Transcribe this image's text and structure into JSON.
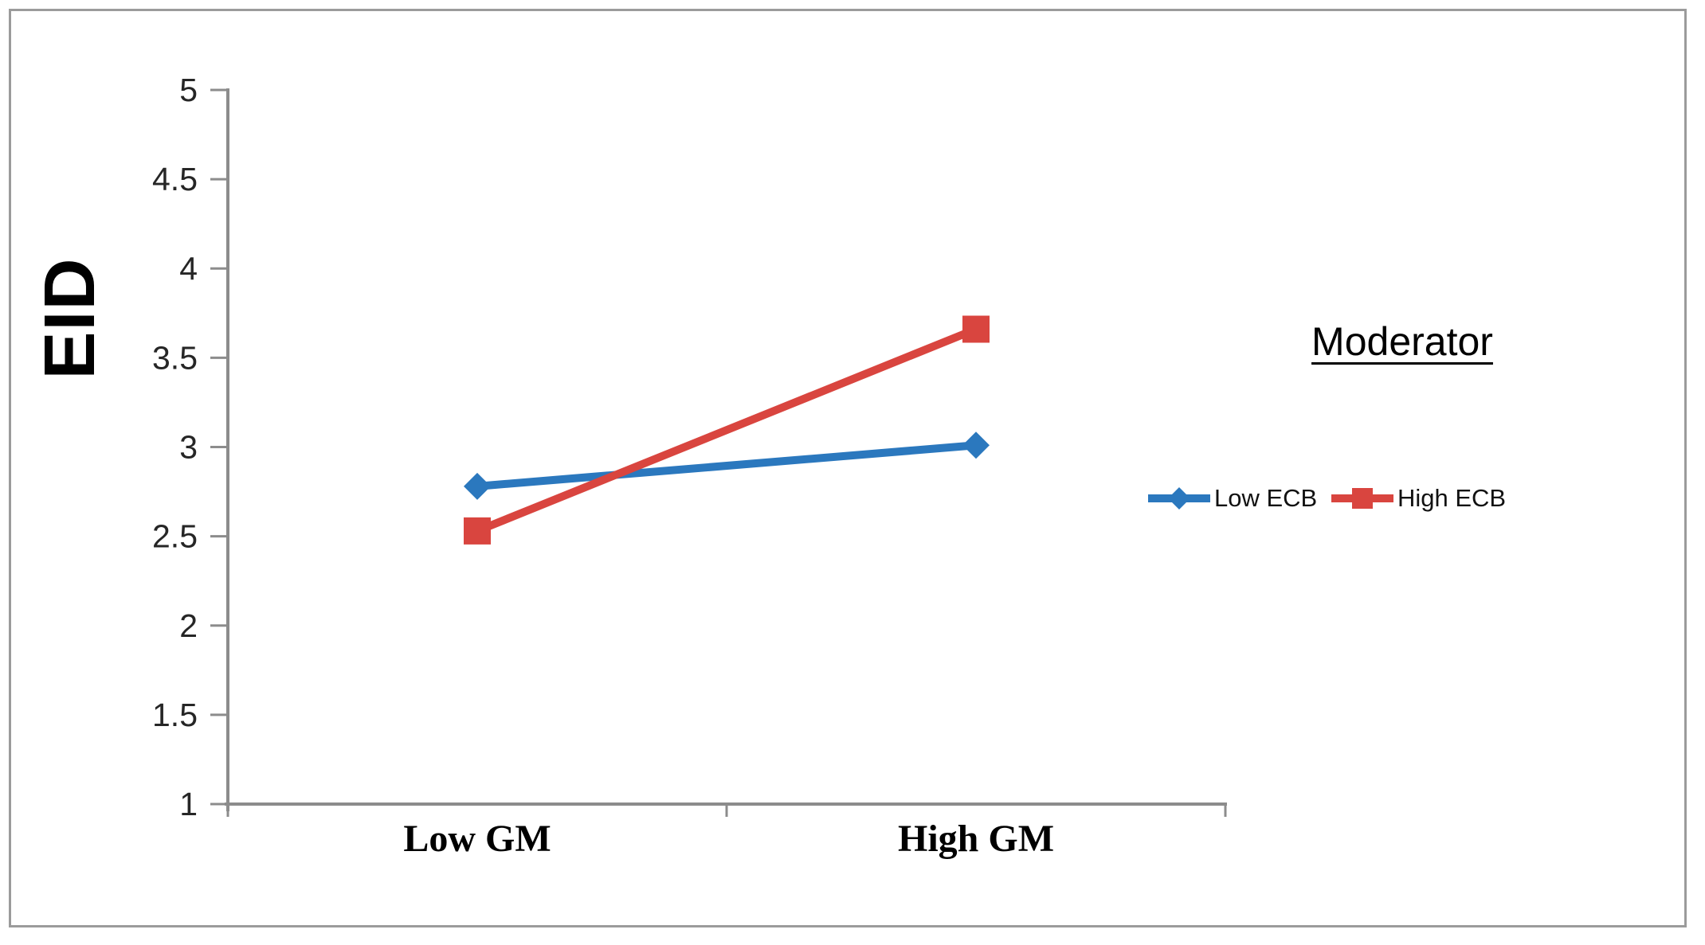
{
  "chart_data": {
    "type": "line",
    "title": "",
    "xlabel": "",
    "ylabel": "EID",
    "categories": [
      "Low GM",
      "High GM"
    ],
    "series": [
      {
        "name": "Low ECB",
        "marker": "diamond",
        "color": "#2B78BE",
        "values": [
          2.78,
          3.01
        ]
      },
      {
        "name": "High ECB",
        "marker": "square",
        "color": "#D9453F",
        "values": [
          2.53,
          3.66
        ]
      }
    ],
    "ylim": [
      1,
      5
    ],
    "yticks": [
      5,
      4.5,
      4,
      3.5,
      3,
      2.5,
      2,
      1.5,
      1
    ],
    "grid": false,
    "legend": {
      "title": "Moderator",
      "position": "right-middle",
      "underlined_title": true
    },
    "axis_color": "#8C8C8C",
    "tick_label_color": "#262626",
    "background": "#FFFFFF",
    "border_color": "#9B9B9B"
  }
}
